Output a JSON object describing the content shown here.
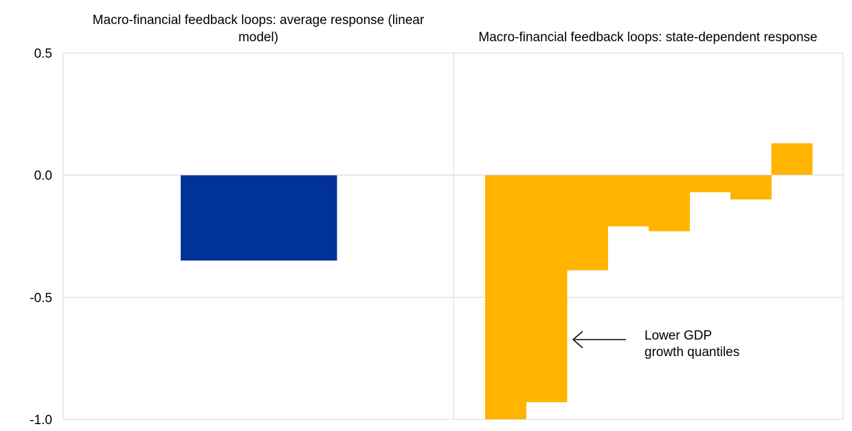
{
  "chart_data": {
    "type": "bar",
    "ylim": [
      -1.0,
      0.5
    ],
    "yticks": [
      0.5,
      0.0,
      -0.5,
      -1.0
    ],
    "ytick_labels": [
      "0.5",
      "0.0",
      "-0.5",
      "-1.0"
    ],
    "grid": true,
    "panels": [
      {
        "title_lines": [
          "Macro-financial feedback loops: average response (linear",
          "model)"
        ],
        "series": [
          {
            "values": [
              -0.35
            ],
            "color": "#003299"
          }
        ]
      },
      {
        "title_lines": [
          "Macro-financial feedback loops: state-dependent response"
        ],
        "series": [
          {
            "values": [
              -1.0,
              -0.93,
              -0.39,
              -0.21,
              -0.23,
              -0.07,
              -0.1,
              0.13
            ],
            "color": "#FFB400"
          }
        ]
      }
    ],
    "annotation": {
      "lines": [
        "Lower GDP",
        "growth quantiles"
      ],
      "arrow_direction": "left"
    }
  }
}
